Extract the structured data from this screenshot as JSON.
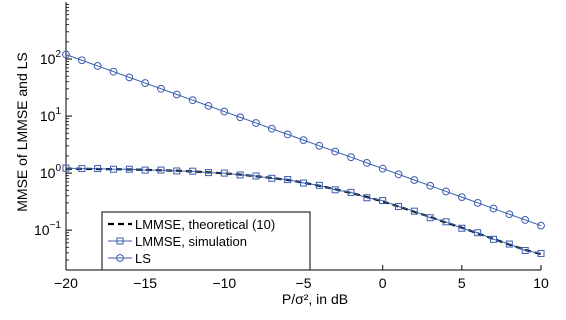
{
  "chart_data": {
    "type": "line",
    "xlabel": "P/σ², in dB",
    "ylabel": "MMSE of LMMSE and LS",
    "xlim": [
      -20,
      10
    ],
    "ylim": [
      0.02,
      1000
    ],
    "yscale": "log",
    "xticks": [
      -20,
      -15,
      -10,
      -5,
      0,
      5,
      10
    ],
    "xtick_labels": [
      "−20",
      "−15",
      "−10",
      "−5",
      "0",
      "5",
      "10"
    ],
    "yticks": [
      {
        "value": 0.1,
        "base": "10",
        "exp": "−1"
      },
      {
        "value": 1,
        "base": "10",
        "exp": "0"
      },
      {
        "value": 10,
        "base": "10",
        "exp": "1"
      },
      {
        "value": 100,
        "base": "10",
        "exp": "2"
      }
    ],
    "legend_position": "bottom-left",
    "series": [
      {
        "name": "LMMSE, theoretical (10)",
        "style": "dashed",
        "marker": "none",
        "color": "#000000",
        "x": [
          -20,
          -19,
          -18,
          -17,
          -16,
          -15,
          -14,
          -13,
          -12,
          -11,
          -10,
          -9,
          -8,
          -7,
          -6,
          -5,
          -4,
          -3,
          -2,
          -1,
          0,
          1,
          2,
          3,
          4,
          5,
          6,
          7,
          8,
          9,
          10
        ],
        "y": [
          1.2,
          1.19,
          1.18,
          1.17,
          1.16,
          1.14,
          1.12,
          1.1,
          1.07,
          1.03,
          0.99,
          0.94,
          0.88,
          0.82,
          0.76,
          0.68,
          0.6,
          0.52,
          0.45,
          0.38,
          0.32,
          0.26,
          0.21,
          0.17,
          0.136,
          0.11,
          0.088,
          0.07,
          0.056,
          0.045,
          0.038
        ]
      },
      {
        "name": "LMMSE, simulation",
        "style": "solid",
        "marker": "square",
        "color": "#3a5fae",
        "x": [
          -20,
          -19,
          -18,
          -17,
          -16,
          -15,
          -14,
          -13,
          -12,
          -11,
          -10,
          -9,
          -8,
          -7,
          -6,
          -5,
          -4,
          -3,
          -2,
          -1,
          0,
          1,
          2,
          3,
          4,
          5,
          6,
          7,
          8,
          9,
          10
        ],
        "y": [
          1.22,
          1.2,
          1.2,
          1.17,
          1.17,
          1.13,
          1.13,
          1.09,
          1.08,
          1.02,
          1.0,
          0.93,
          0.89,
          0.81,
          0.77,
          0.67,
          0.61,
          0.51,
          0.46,
          0.37,
          0.33,
          0.26,
          0.215,
          0.165,
          0.14,
          0.108,
          0.09,
          0.069,
          0.057,
          0.044,
          0.039
        ]
      },
      {
        "name": "LS",
        "style": "solid",
        "marker": "circle",
        "color": "#3a5fae",
        "x": [
          -20,
          -19,
          -18,
          -17,
          -16,
          -15,
          -14,
          -13,
          -12,
          -11,
          -10,
          -9,
          -8,
          -7,
          -6,
          -5,
          -4,
          -3,
          -2,
          -1,
          0,
          1,
          2,
          3,
          4,
          5,
          6,
          7,
          8,
          9,
          10
        ],
        "y": [
          120,
          95.3,
          75.7,
          60.1,
          47.7,
          37.9,
          30.1,
          23.9,
          19.0,
          15.1,
          12.0,
          9.53,
          7.57,
          6.01,
          4.77,
          3.79,
          3.01,
          2.39,
          1.9,
          1.51,
          1.2,
          0.953,
          0.757,
          0.601,
          0.477,
          0.379,
          0.301,
          0.239,
          0.19,
          0.151,
          0.12
        ]
      }
    ]
  }
}
